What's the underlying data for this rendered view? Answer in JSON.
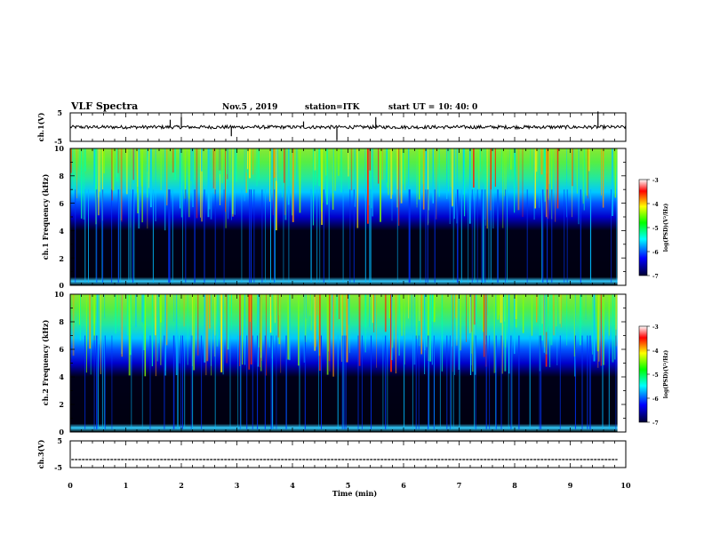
{
  "header": {
    "title": "VLF Spectra",
    "date": "Nov.5 , 2019",
    "station": "station=ITK",
    "start_label": "start UT =",
    "start_time": "10: 40: 0"
  },
  "colors": {
    "background": "#ffffff",
    "axis": "#000000",
    "waveform": "#000000",
    "colormap": [
      "#000033",
      "#0000ff",
      "#00ffff",
      "#00ff00",
      "#ffff00",
      "#ff0000",
      "#ffffff"
    ]
  },
  "chart_data": [
    {
      "type": "line",
      "panel": "ch1-waveform",
      "ylabel": "ch.1(V)",
      "ylim": [
        -5,
        5
      ],
      "yticks": [
        "5",
        "-5"
      ],
      "xlim": [
        0,
        10
      ],
      "baseline": 0
    },
    {
      "type": "heatmap",
      "panel": "ch1-spectrogram",
      "ylabel": "ch.1 Frequency (kHz)",
      "ylim": [
        0,
        10
      ],
      "yticks": [
        "0",
        "2",
        "4",
        "6",
        "8",
        "10"
      ],
      "xlim": [
        0,
        10
      ],
      "colorbar": {
        "label": "log(PSD)(V²/Hz)",
        "range": [
          -7,
          -3
        ],
        "ticks": [
          "-3",
          "-4",
          "-5",
          "-6",
          "-7"
        ]
      }
    },
    {
      "type": "heatmap",
      "panel": "ch2-spectrogram",
      "ylabel": "ch.2 Frequency (kHz)",
      "ylim": [
        0,
        10
      ],
      "yticks": [
        "0",
        "2",
        "4",
        "6",
        "8",
        "10"
      ],
      "xlim": [
        0,
        10
      ],
      "colorbar": {
        "label": "log(PSD)(V²/Hz)",
        "range": [
          -7,
          -3
        ],
        "ticks": [
          "-3",
          "-4",
          "-5",
          "-6",
          "-7"
        ]
      }
    },
    {
      "type": "line",
      "panel": "ch3-waveform",
      "ylabel": "ch.3(V)",
      "ylim": [
        -5,
        5
      ],
      "yticks": [
        "5",
        "-5"
      ],
      "xlim": [
        0,
        10
      ],
      "baseline": -2
    }
  ],
  "x_axis": {
    "label": "Time (min)",
    "ticks": [
      "0",
      "1",
      "2",
      "3",
      "4",
      "5",
      "6",
      "7",
      "8",
      "9",
      "10"
    ]
  }
}
